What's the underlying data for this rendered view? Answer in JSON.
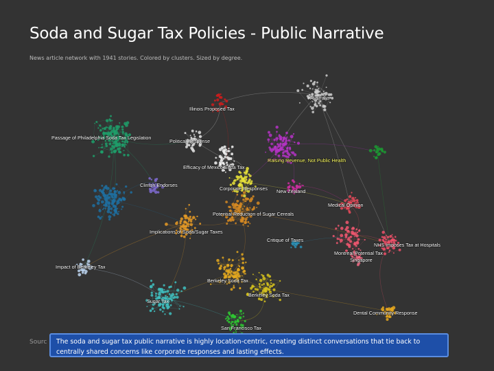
{
  "page": {
    "title": "Soda and Sugar Tax Policies - Public Narrative",
    "subtitle": "News article network with 1941 stories. Colored by clusters. Sized by degree.",
    "source_label": "Sourc",
    "callout_line1": "The soda and sugar tax public narrative is highly location-centric, creating distinct conversations that tie back to",
    "callout_line2": "centrally shared concerns like corporate responses and lasting effects."
  },
  "network": {
    "clusters": [
      {
        "label": "Australia",
        "color": "#cfcfcf",
        "label_color": "#ffffff",
        "size": 70
      },
      {
        "label": "Illinois Proposed Tax",
        "color": "#d01c1c",
        "label_color": "#ffffff",
        "size": 20
      },
      {
        "label": "Passage of Philadelphia Soda Tax Legislation",
        "color": "#1f9e6a",
        "label_color": "#ffffff",
        "size": 140
      },
      {
        "label": "Political Response",
        "color": "#e0e0e0",
        "label_color": "#ffffff",
        "size": 40
      },
      {
        "label": "Efficacy of Mexico Soda Tax",
        "color": "#f2f2f2",
        "label_color": "#ffffff",
        "size": 45
      },
      {
        "label": "Raising Revenue, Not Public Health",
        "color": "#b532c5",
        "label_color": "#ffff66",
        "size": 90
      },
      {
        "label": "Clinton Endorses",
        "color": "#7f6bd1",
        "label_color": "#ffffff",
        "size": 30
      },
      {
        "label": "Corporate Responses",
        "color": "#e8e23a",
        "label_color": "#ffffff",
        "size": 60
      },
      {
        "label": "New Zealand",
        "color": "#cc2ea1",
        "label_color": "#ffffff",
        "size": 25
      },
      {
        "label": "Medical Opinion",
        "color": "#e84a5a",
        "label_color": "#ffffff",
        "size": 40
      },
      {
        "label": "Potential Reduction of Sugar Cereals",
        "color": "#d68a22",
        "label_color": "#ffffff",
        "size": 90
      },
      {
        "label": "Critique of Taxes",
        "color": "#2b8fb5",
        "label_color": "#ffffff",
        "size": 20
      },
      {
        "label": "Implications of Soda/Sugar Taxes",
        "color": "#e59a26",
        "label_color": "#ffffff",
        "size": 60
      },
      {
        "label": "NHS Imposes Tax at Hospitals",
        "color": "#f0506a",
        "label_color": "#ffffff",
        "size": 50
      },
      {
        "label": "Montreal Potential Tax",
        "color": "#f05770",
        "label_color": "#ffffff",
        "size": 55
      },
      {
        "label": "Singapore",
        "color": "#f06a84",
        "label_color": "#ffffff",
        "size": 25
      },
      {
        "label": "Impact of Berkeley Tax",
        "color": "#bcd4ee",
        "label_color": "#ffffff",
        "size": 30
      },
      {
        "label": "Berkeley Soda Tax",
        "color": "#e3a820",
        "label_color": "#ffffff",
        "size": 90
      },
      {
        "label": "Berkeley Soda Tax",
        "color": "#d6c21d",
        "label_color": "#ffffff",
        "size": 60
      },
      {
        "label": "Sugar Tax",
        "color": "#3fbfbf",
        "label_color": "#ffffff",
        "size": 90
      },
      {
        "label": "San Francisco Tax",
        "color": "#2fc832",
        "label_color": "#ffffff",
        "size": 50
      },
      {
        "label": "Dental Community Response",
        "color": "#e6a81e",
        "label_color": "#ffffff",
        "size": 30
      },
      {
        "label": "",
        "color": "#1c9a33",
        "label_color": "#ffffff",
        "size": 20
      },
      {
        "label": "",
        "color": "#1e6fa0",
        "label_color": "#ffffff",
        "size": 120
      }
    ]
  }
}
